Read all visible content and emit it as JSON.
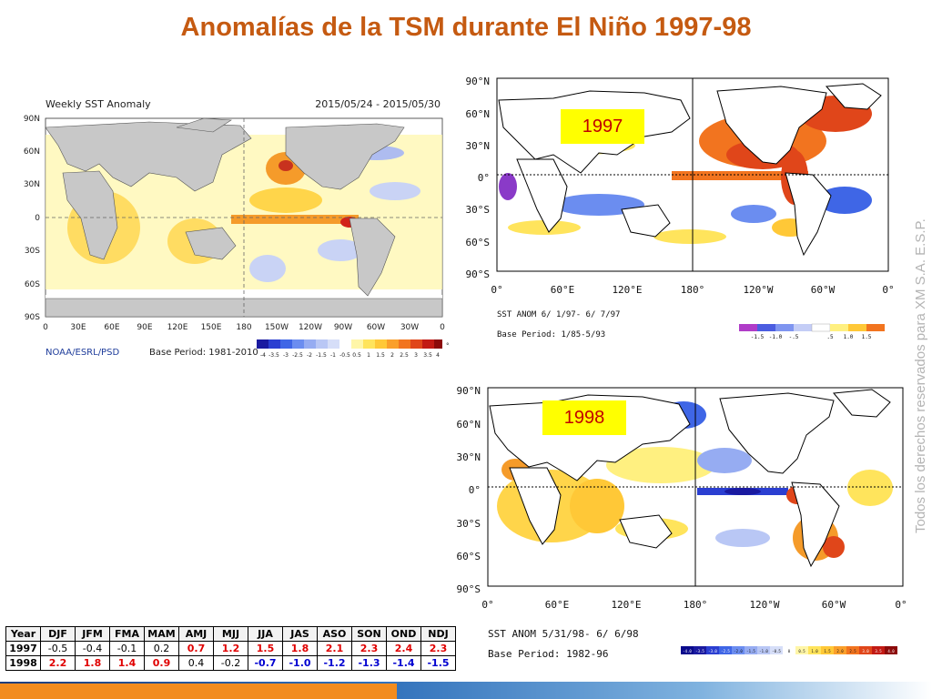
{
  "title": "Anomalías de la TSM durante El Niño 1997-98",
  "watermark": "Todos los derechos reservados para XM S.A. E.S.P.",
  "left_map": {
    "header_left": "Weekly SST Anomaly",
    "header_right": "2015/05/24 - 2015/05/30",
    "lat_labels": [
      "90N",
      "60N",
      "30N",
      "0",
      "30S",
      "60S",
      "90S"
    ],
    "lon_labels": [
      "0",
      "30E",
      "60E",
      "90E",
      "120E",
      "150E",
      "180",
      "150W",
      "120W",
      "90W",
      "60W",
      "30W",
      "0"
    ],
    "credit": "NOAA/ESRL/PSD",
    "base_period": "Base Period: 1981-2010",
    "colorbar_labels": [
      "-4",
      "-3.5",
      "-3",
      "-2.5",
      "-2",
      "-1.5",
      "-1",
      "-0.5",
      "0.5",
      "1",
      "1.5",
      "2",
      "2.5",
      "3",
      "3.5",
      "4"
    ],
    "colorbar_unit": "°C"
  },
  "map_1997": {
    "year_label": "1997",
    "lat_labels": [
      "90°N",
      "60°N",
      "30°N",
      "0°",
      "30°S",
      "60°S",
      "90°S"
    ],
    "lon_labels": [
      "0°",
      "60°E",
      "120°E",
      "180°",
      "120°W",
      "60°W",
      "0°"
    ],
    "caption_1": "SST ANOM  6/ 1/97- 6/ 7/97",
    "caption_2": "Base Period: 1/85-5/93",
    "colorbar_labels": [
      "-1.5",
      "-1.0",
      "-.5",
      ".5",
      "1.0",
      "1.5"
    ]
  },
  "map_1998": {
    "year_label": "1998",
    "lat_labels": [
      "90°N",
      "60°N",
      "30°N",
      "0°",
      "30°S",
      "60°S",
      "90°S"
    ],
    "lon_labels": [
      "0°",
      "60°E",
      "120°E",
      "180°",
      "120°W",
      "60°W",
      "0°"
    ],
    "caption_1": "SST ANOM  5/31/98- 6/ 6/98",
    "caption_2": "Base Period: 1982-96",
    "colorbar_labels": [
      "-4.0",
      "-3.5",
      "-3.0",
      "-2.5",
      "-2.0",
      "-1.5",
      "-1.0",
      "-0.5",
      "0",
      "0.5",
      "1.0",
      "1.5",
      "2.0",
      "2.5",
      "3.0",
      "3.5",
      "4.0"
    ]
  },
  "colors": {
    "title": "#c55a11",
    "warm_value": "#e00000",
    "cold_value": "#0000d0",
    "year_label_bg": "#ffff00",
    "year_label_text": "#c00000"
  },
  "oni_table": {
    "headers": [
      "Year",
      "DJF",
      "JFM",
      "FMA",
      "MAM",
      "AMJ",
      "MJJ",
      "JJA",
      "JAS",
      "ASO",
      "SON",
      "OND",
      "NDJ"
    ],
    "rows": [
      {
        "year": "1997",
        "values": [
          "-0.5",
          "-0.4",
          "-0.1",
          "0.2",
          "0.7",
          "1.2",
          "1.5",
          "1.8",
          "2.1",
          "2.3",
          "2.4",
          "2.3"
        ],
        "classes": [
          "neu",
          "neu",
          "neu",
          "neu",
          "warm",
          "warm",
          "warm",
          "warm",
          "warm",
          "warm",
          "warm",
          "warm"
        ]
      },
      {
        "year": "1998",
        "values": [
          "2.2",
          "1.8",
          "1.4",
          "0.9",
          "0.4",
          "-0.2",
          "-0.7",
          "-1.0",
          "-1.2",
          "-1.3",
          "-1.4",
          "-1.5"
        ],
        "classes": [
          "warm",
          "warm",
          "warm",
          "warm",
          "neu",
          "neu",
          "cold",
          "cold",
          "cold",
          "cold",
          "cold",
          "cold"
        ]
      }
    ]
  }
}
